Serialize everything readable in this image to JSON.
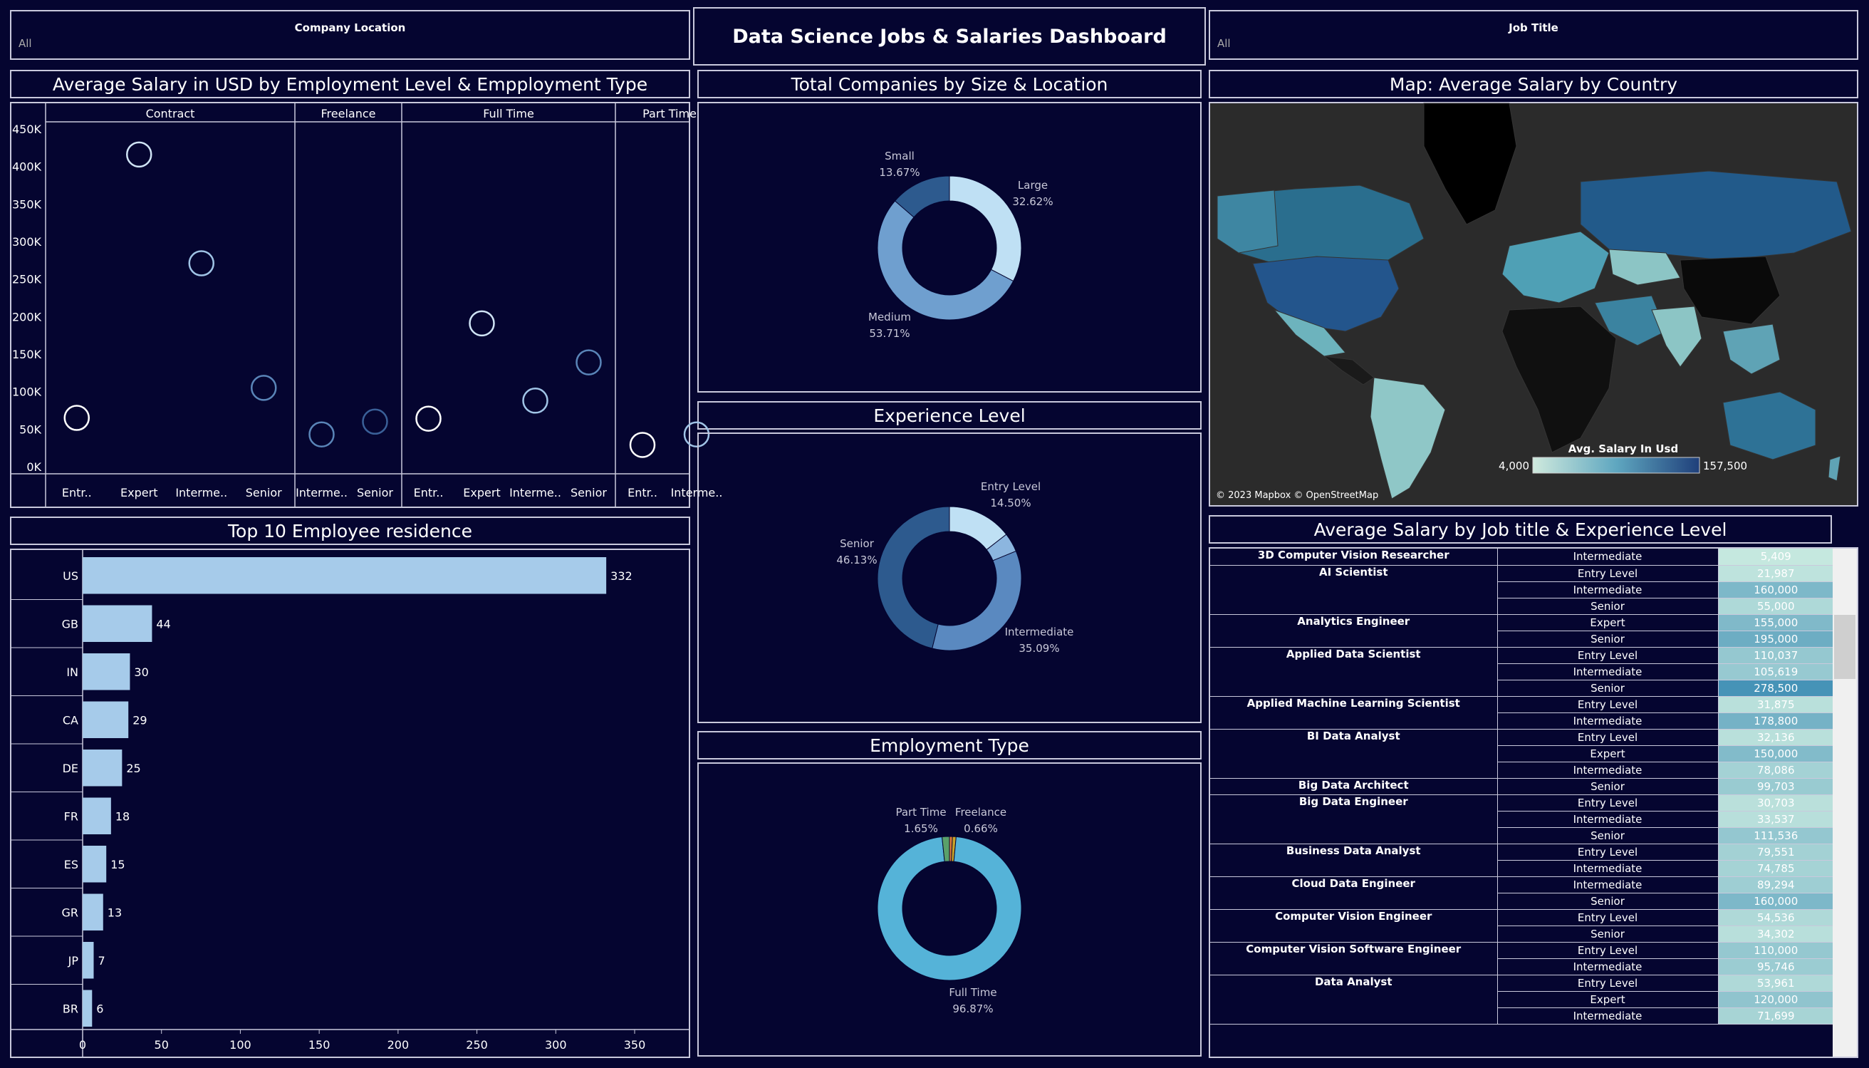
{
  "header": {
    "title": "Data Science Jobs & Salaries Dashboard",
    "company_location_label": "Company Location",
    "company_location_value": "All",
    "job_title_label": "Job Title",
    "job_title_value": "All"
  },
  "colors": {
    "background": "#050530",
    "border": "#c9c9dc",
    "bar": "#a6cbea",
    "donut_light": "#bfe0f4",
    "donut_mid": "#6f9fcf",
    "donut_dark": "#2d5a8e",
    "fulltime": "#55b3d8"
  },
  "chart_data": [
    {
      "id": "salary_scatter",
      "type": "scatter",
      "title": "Average Salary in USD by Employment Level & Empployment Type",
      "ylim": [
        0,
        450000
      ],
      "yticks": [
        0,
        50000,
        100000,
        150000,
        200000,
        250000,
        300000,
        350000,
        400000,
        450000
      ],
      "ytick_labels": [
        "0K",
        "50K",
        "100K",
        "150K",
        "200K",
        "250K",
        "300K",
        "350K",
        "400K",
        "450K"
      ],
      "panels": [
        {
          "name": "Contract",
          "categories": [
            "Entr..",
            "Expert",
            "Interme..",
            "Senior"
          ],
          "values": [
            65000,
            416000,
            271000,
            105000
          ],
          "colors": [
            "#ffffff",
            "#d0e4f5",
            "#a0c4e6",
            "#5a85b8"
          ]
        },
        {
          "name": "Freelance",
          "categories": [
            "Interme..",
            "Senior"
          ],
          "values": [
            43000,
            60000
          ],
          "colors": [
            "#5a85b8",
            "#3a6098"
          ]
        },
        {
          "name": "Full Time",
          "categories": [
            "Entr..",
            "Expert",
            "Interme..",
            "Senior"
          ],
          "values": [
            64000,
            191000,
            88000,
            139000
          ],
          "colors": [
            "#ffffff",
            "#d0e4f5",
            "#a0c4e6",
            "#5a85b8"
          ]
        },
        {
          "name": "Part Time",
          "categories": [
            "Entr..",
            "Interme.."
          ],
          "values": [
            29000,
            43000
          ],
          "colors": [
            "#ffffff",
            "#a0c4e6"
          ]
        }
      ]
    },
    {
      "id": "company_size_donut",
      "type": "pie",
      "title": "Total Companies by Size & Location",
      "slices": [
        {
          "label": "Large",
          "percent_label": "32.62%",
          "value": 32.62,
          "color": "#bfe0f4"
        },
        {
          "label": "Medium",
          "percent_label": "53.71%",
          "value": 53.71,
          "color": "#6f9fcf"
        },
        {
          "label": "Small",
          "percent_label": "13.67%",
          "value": 13.67,
          "color": "#2d5a8e"
        }
      ]
    },
    {
      "id": "experience_donut",
      "type": "pie",
      "title": "Experience Level",
      "slices": [
        {
          "label": "Entry Level",
          "percent_label": "14.50%",
          "value": 14.5,
          "color": "#bfe0f4"
        },
        {
          "label": "",
          "percent_label": "",
          "value": 4.28,
          "color": "#8cb6df"
        },
        {
          "label": "Intermediate",
          "percent_label": "35.09%",
          "value": 35.09,
          "color": "#5a89c0"
        },
        {
          "label": "Senior",
          "percent_label": "46.13%",
          "value": 46.13,
          "color": "#2d5a8e"
        }
      ]
    },
    {
      "id": "employment_donut",
      "type": "pie",
      "title": "Employment Type",
      "slices": [
        {
          "label": "Freelance",
          "percent_label": "0.66%",
          "value": 0.66,
          "color": "#e07b39"
        },
        {
          "label": "",
          "percent_label": "",
          "value": 0.82,
          "color": "#c9a227"
        },
        {
          "label": "Full Time",
          "percent_label": "96.87%",
          "value": 96.87,
          "color": "#55b3d8"
        },
        {
          "label": "Part Time",
          "percent_label": "1.65%",
          "value": 1.65,
          "color": "#5aa06a"
        }
      ]
    },
    {
      "id": "residence_bar",
      "type": "bar",
      "title": "Top 10 Employee residence",
      "categories": [
        "US",
        "GB",
        "IN",
        "CA",
        "DE",
        "FR",
        "ES",
        "GR",
        "JP",
        "BR"
      ],
      "values": [
        332,
        44,
        30,
        29,
        25,
        18,
        15,
        13,
        7,
        6
      ],
      "xlim": [
        0,
        360
      ],
      "xticks": [
        0,
        50,
        100,
        150,
        200,
        250,
        300,
        350
      ]
    },
    {
      "id": "salary_map",
      "type": "heatmap",
      "title": "Map: Average Salary by Country",
      "legend_title": "Avg. Salary In Usd",
      "legend_min": "4,000",
      "legend_max": "157,500",
      "attribution": "© 2023 Mapbox © OpenStreetMap"
    },
    {
      "id": "job_table",
      "type": "table",
      "title": "Average Salary by Job title & Experience Level",
      "rows": [
        {
          "title": "3D Computer Vision Researcher",
          "entries": [
            [
              "Intermediate",
              "5,409",
              5409
            ]
          ]
        },
        {
          "title": "AI Scientist",
          "entries": [
            [
              "Entry Level",
              "21,987",
              21987
            ],
            [
              "Intermediate",
              "160,000",
              160000
            ],
            [
              "Senior",
              "55,000",
              55000
            ]
          ]
        },
        {
          "title": "Analytics Engineer",
          "entries": [
            [
              "Expert",
              "155,000",
              155000
            ],
            [
              "Senior",
              "195,000",
              195000
            ]
          ]
        },
        {
          "title": "Applied Data Scientist",
          "entries": [
            [
              "Entry Level",
              "110,037",
              110037
            ],
            [
              "Intermediate",
              "105,619",
              105619
            ],
            [
              "Senior",
              "278,500",
              278500
            ]
          ]
        },
        {
          "title": "Applied Machine Learning Scientist",
          "entries": [
            [
              "Entry Level",
              "31,875",
              31875
            ],
            [
              "Intermediate",
              "178,800",
              178800
            ]
          ]
        },
        {
          "title": "BI Data Analyst",
          "entries": [
            [
              "Entry Level",
              "32,136",
              32136
            ],
            [
              "Expert",
              "150,000",
              150000
            ],
            [
              "Intermediate",
              "78,086",
              78086
            ]
          ]
        },
        {
          "title": "Big Data Architect",
          "entries": [
            [
              "Senior",
              "99,703",
              99703
            ]
          ]
        },
        {
          "title": "Big Data Engineer",
          "entries": [
            [
              "Entry Level",
              "30,703",
              30703
            ],
            [
              "Intermediate",
              "33,537",
              33537
            ],
            [
              "Senior",
              "111,536",
              111536
            ]
          ]
        },
        {
          "title": "Business Data Analyst",
          "entries": [
            [
              "Entry Level",
              "79,551",
              79551
            ],
            [
              "Intermediate",
              "74,785",
              74785
            ]
          ]
        },
        {
          "title": "Cloud Data Engineer",
          "entries": [
            [
              "Intermediate",
              "89,294",
              89294
            ],
            [
              "Senior",
              "160,000",
              160000
            ]
          ]
        },
        {
          "title": "Computer Vision Engineer",
          "entries": [
            [
              "Entry Level",
              "54,536",
              54536
            ],
            [
              "Senior",
              "34,302",
              34302
            ]
          ]
        },
        {
          "title": "Computer Vision Software Engineer",
          "entries": [
            [
              "Entry Level",
              "110,000",
              110000
            ],
            [
              "Intermediate",
              "95,746",
              95746
            ]
          ]
        },
        {
          "title": "Data Analyst",
          "entries": [
            [
              "Entry Level",
              "53,961",
              53961
            ],
            [
              "Expert",
              "120,000",
              120000
            ],
            [
              "Intermediate",
              "71,699",
              71699
            ]
          ]
        }
      ]
    }
  ]
}
